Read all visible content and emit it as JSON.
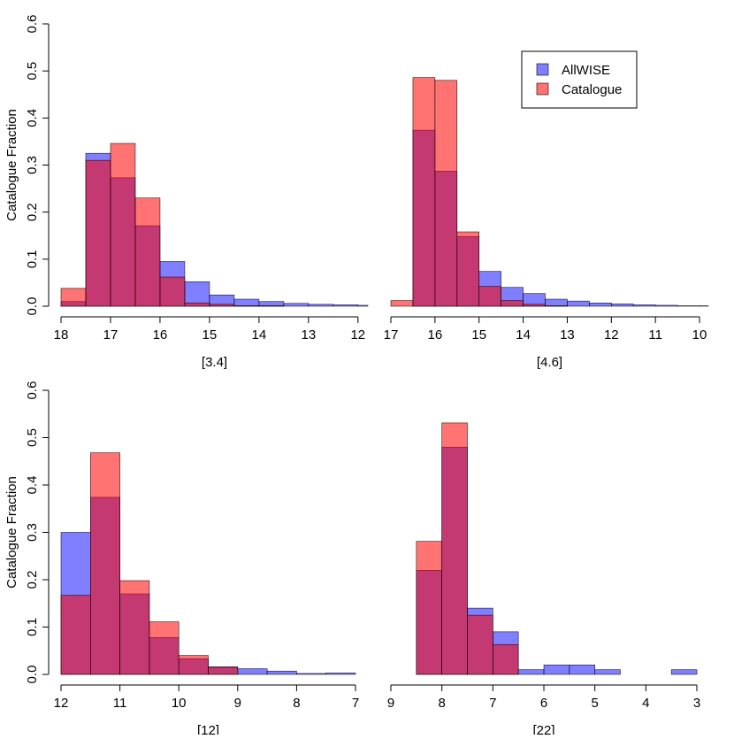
{
  "colors": {
    "allwise": "#0000FF",
    "catalogue": "#FF0000",
    "allwise_alpha": 0.5,
    "catalogue_alpha": 0.55
  },
  "legend": {
    "placement": "top-right",
    "entries": [
      {
        "label": "AllWISE",
        "color_key": "allwise"
      },
      {
        "label": "Catalogue",
        "color_key": "catalogue"
      }
    ]
  },
  "chart_data": [
    {
      "type": "bar",
      "panel": "top-left",
      "xlabel": "[3.4]",
      "ylabel": "Catalogue Fraction",
      "xlim": [
        18,
        11.8
      ],
      "ylim": [
        0,
        0.6
      ],
      "xticks": [
        18,
        17,
        16,
        15,
        14,
        13,
        12
      ],
      "xtick_labels": [
        "18",
        "17",
        "16",
        "15",
        "14",
        "13",
        "12"
      ],
      "yticks": [
        0.0,
        0.1,
        0.2,
        0.3,
        0.4,
        0.5,
        0.6
      ],
      "ytick_labels": [
        "0.0",
        "0.1",
        "0.2",
        "0.3",
        "0.4",
        "0.5",
        "0.6"
      ],
      "bin_edges": [
        18.0,
        17.5,
        17.0,
        16.5,
        16.0,
        15.5,
        15.0,
        14.5,
        14.0,
        13.5,
        13.0,
        12.5,
        12.0,
        11.8
      ],
      "series": [
        {
          "name": "AllWISE",
          "values": [
            0.01,
            0.325,
            0.273,
            0.171,
            0.095,
            0.052,
            0.024,
            0.015,
            0.01,
            0.006,
            0.004,
            0.003,
            0.002
          ]
        },
        {
          "name": "Catalogue",
          "values": [
            0.038,
            0.31,
            0.346,
            0.23,
            0.062,
            0.007,
            0.004,
            0.001,
            0.001,
            0.0,
            0.0,
            0.0,
            0.0
          ]
        }
      ]
    },
    {
      "type": "bar",
      "panel": "top-right",
      "xlabel": "[4.6]",
      "ylabel": "",
      "xlim": [
        17,
        9.8
      ],
      "ylim": [
        0,
        0.6
      ],
      "xticks": [
        17,
        16,
        15,
        14,
        13,
        12,
        11,
        10
      ],
      "xtick_labels": [
        "17",
        "16",
        "15",
        "14",
        "13",
        "12",
        "11",
        "10"
      ],
      "yticks": [],
      "ytick_labels": [],
      "bin_edges": [
        17.0,
        16.5,
        16.0,
        15.5,
        15.0,
        14.5,
        14.0,
        13.5,
        13.0,
        12.5,
        12.0,
        11.5,
        11.0,
        10.5,
        10.0,
        9.8
      ],
      "series": [
        {
          "name": "AllWISE",
          "values": [
            0.0,
            0.374,
            0.287,
            0.148,
            0.074,
            0.04,
            0.027,
            0.015,
            0.011,
            0.007,
            0.005,
            0.003,
            0.002,
            0.001,
            0.001
          ]
        },
        {
          "name": "Catalogue",
          "values": [
            0.012,
            0.486,
            0.48,
            0.158,
            0.042,
            0.012,
            0.004,
            0.001,
            0.0,
            0.0,
            0.0,
            0.0,
            0.0,
            0.0,
            0.0
          ]
        }
      ]
    },
    {
      "type": "bar",
      "panel": "bottom-left",
      "xlabel": "[12]",
      "ylabel": "Catalogue Fraction",
      "xlim": [
        12,
        7
      ],
      "ylim": [
        0,
        0.6
      ],
      "xticks": [
        12,
        11,
        10,
        9,
        8,
        7
      ],
      "xtick_labels": [
        "12",
        "11",
        "10",
        "9",
        "8",
        "7"
      ],
      "yticks": [
        0.0,
        0.1,
        0.2,
        0.3,
        0.4,
        0.5,
        0.6
      ],
      "ytick_labels": [
        "0.0",
        "0.1",
        "0.2",
        "0.3",
        "0.4",
        "0.5",
        "0.6"
      ],
      "bin_edges": [
        12.0,
        11.5,
        11.0,
        10.5,
        10.0,
        9.5,
        9.0,
        8.5,
        8.0,
        7.5,
        7.0
      ],
      "series": [
        {
          "name": "AllWISE",
          "values": [
            0.3,
            0.374,
            0.17,
            0.078,
            0.033,
            0.016,
            0.012,
            0.007,
            0.002,
            0.003
          ]
        },
        {
          "name": "Catalogue",
          "values": [
            0.167,
            0.468,
            0.198,
            0.111,
            0.04,
            0.015,
            0.0,
            0.0,
            0.0,
            0.0
          ]
        }
      ]
    },
    {
      "type": "bar",
      "panel": "bottom-right",
      "xlabel": "[22]",
      "ylabel": "",
      "xlim": [
        9,
        3
      ],
      "ylim": [
        0,
        0.6
      ],
      "xticks": [
        9,
        8,
        7,
        6,
        5,
        4,
        3
      ],
      "xtick_labels": [
        "9",
        "8",
        "7",
        "6",
        "5",
        "4",
        "3"
      ],
      "yticks": [],
      "ytick_labels": [],
      "bin_edges": [
        8.5,
        8.0,
        7.5,
        7.0,
        6.5,
        6.0,
        5.5,
        5.0,
        4.5,
        4.0,
        3.5,
        3.0
      ],
      "series": [
        {
          "name": "AllWISE",
          "values": [
            0.22,
            0.48,
            0.14,
            0.09,
            0.01,
            0.02,
            0.02,
            0.01,
            0.0,
            0.0,
            0.01
          ]
        },
        {
          "name": "Catalogue",
          "values": [
            0.281,
            0.531,
            0.125,
            0.063,
            0.0,
            0.0,
            0.0,
            0.0,
            0.0,
            0.0,
            0.0
          ]
        }
      ]
    }
  ]
}
